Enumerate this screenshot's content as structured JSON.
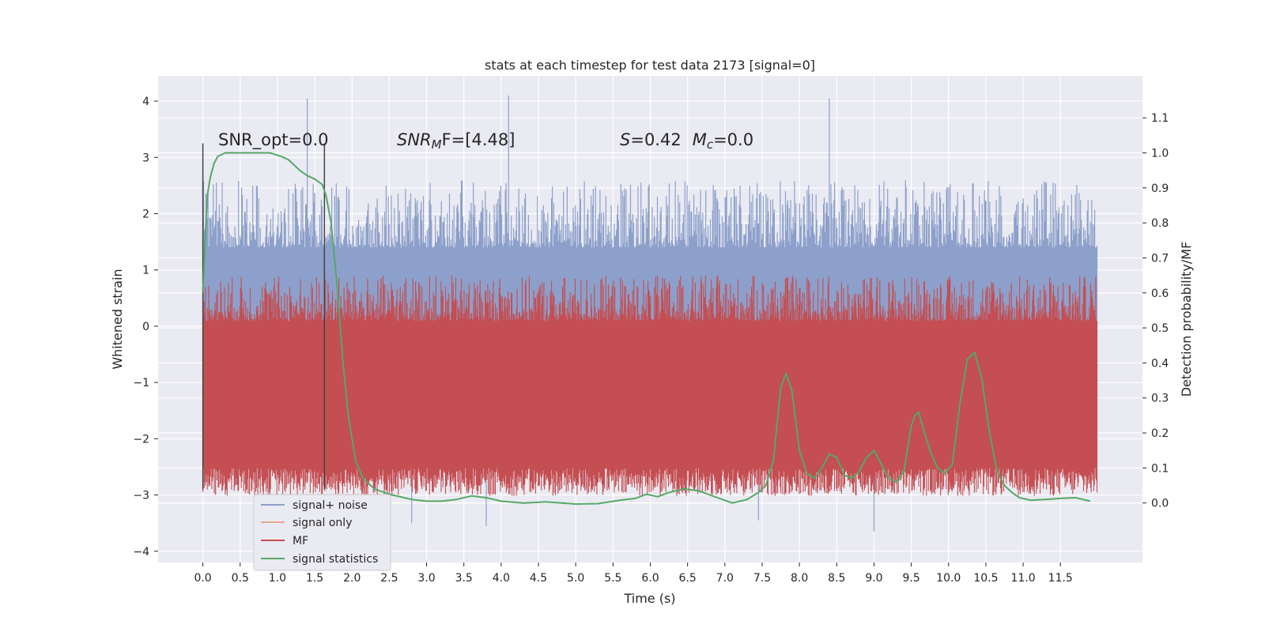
{
  "chart_data": {
    "type": "line",
    "title": "stats at each timestep for test data 2173 [signal=0]",
    "xlabel": "Time (s)",
    "ylabel": "Whitened strain",
    "y2label": "Detection probability/MF",
    "xlim": [
      -0.6,
      12.6
    ],
    "ylim": [
      -4.2,
      4.45
    ],
    "y2lim": [
      -0.17,
      1.22
    ],
    "xticks": [
      "0.0",
      "0.5",
      "1.0",
      "1.5",
      "2.0",
      "2.5",
      "3.0",
      "3.5",
      "4.0",
      "4.5",
      "5.0",
      "5.5",
      "6.0",
      "6.5",
      "7.0",
      "7.5",
      "8.0",
      "8.5",
      "9.0",
      "9.5",
      "10.0",
      "10.5",
      "11.0",
      "11.5"
    ],
    "yticks": [
      "4",
      "3",
      "2",
      "1",
      "0",
      "−1",
      "−2",
      "−3",
      "−4"
    ],
    "y2ticks": [
      "1.1",
      "1.0",
      "0.9",
      "0.8",
      "0.7",
      "0.6",
      "0.5",
      "0.4",
      "0.3",
      "0.2",
      "0.1",
      "0.0"
    ],
    "grid": true,
    "legend_position": "lower-left",
    "annotations": {
      "snr_opt": "SNR_opt=0.0",
      "snr_mf_sym": "SNR",
      "snr_mf_sub": "M",
      "snr_mf_tail": "F=[4.48]",
      "s_sym": "S",
      "s_val": "=0.42",
      "mc_sym": "M",
      "mc_sub": "c",
      "mc_val": "=0.0"
    },
    "vertical_lines_x": [
      0.0,
      1.63
    ],
    "series": [
      {
        "name": "signal+ noise",
        "color": "#8da0cb",
        "band": [
          -1.5,
          1.4
        ],
        "spikes": [
          [
            1.4,
            4.05
          ],
          [
            4.1,
            4.1
          ],
          [
            8.4,
            4.05
          ],
          [
            0.3,
            -3.0
          ],
          [
            3.8,
            -3.55
          ],
          [
            9.0,
            -3.65
          ],
          [
            7.45,
            -3.45
          ],
          [
            2.8,
            -3.5
          ]
        ]
      },
      {
        "name": "signal only",
        "color": "#e8a890",
        "values_note": "flat at 0"
      },
      {
        "name": "MF",
        "color": "#c44e52",
        "band": [
          0.02,
          0.62
        ],
        "axis": "y2"
      },
      {
        "name": "signal statistics",
        "color": "#55a868",
        "axis": "y2",
        "x": [
          0.0,
          0.03,
          0.06,
          0.1,
          0.15,
          0.2,
          0.3,
          0.5,
          0.7,
          0.9,
          1.05,
          1.15,
          1.3,
          1.4,
          1.5,
          1.6,
          1.65,
          1.72,
          1.8,
          1.88,
          1.95,
          2.05,
          2.15,
          2.3,
          2.5,
          2.8,
          3.0,
          3.2,
          3.4,
          3.6,
          3.8,
          4.0,
          4.3,
          4.6,
          5.0,
          5.3,
          5.6,
          5.8,
          5.95,
          6.1,
          6.25,
          6.45,
          6.65,
          6.9,
          7.1,
          7.3,
          7.45,
          7.55,
          7.65,
          7.75,
          7.82,
          7.9,
          8.0,
          8.1,
          8.2,
          8.3,
          8.4,
          8.5,
          8.6,
          8.7,
          8.8,
          8.9,
          9.0,
          9.1,
          9.2,
          9.3,
          9.4,
          9.5,
          9.55,
          9.6,
          9.65,
          9.75,
          9.85,
          9.95,
          10.05,
          10.15,
          10.25,
          10.35,
          10.45,
          10.55,
          10.65,
          10.75,
          10.85,
          10.95,
          11.1,
          11.3,
          11.5,
          11.7,
          11.9
        ],
        "values": [
          0.6,
          0.75,
          0.88,
          0.93,
          0.97,
          0.99,
          1.0,
          1.0,
          1.0,
          1.0,
          0.99,
          0.98,
          0.95,
          0.935,
          0.925,
          0.91,
          0.88,
          0.8,
          0.62,
          0.4,
          0.25,
          0.12,
          0.07,
          0.04,
          0.025,
          0.01,
          0.005,
          0.005,
          0.01,
          0.02,
          0.015,
          0.005,
          0.0,
          0.003,
          -0.003,
          -0.002,
          0.008,
          0.013,
          0.025,
          0.018,
          0.03,
          0.04,
          0.035,
          0.015,
          0.0,
          0.01,
          0.03,
          0.05,
          0.12,
          0.33,
          0.37,
          0.32,
          0.15,
          0.085,
          0.07,
          0.1,
          0.14,
          0.13,
          0.08,
          0.07,
          0.09,
          0.13,
          0.15,
          0.11,
          0.07,
          0.06,
          0.09,
          0.22,
          0.25,
          0.26,
          0.22,
          0.15,
          0.1,
          0.085,
          0.11,
          0.28,
          0.41,
          0.43,
          0.35,
          0.2,
          0.09,
          0.05,
          0.03,
          0.015,
          0.008,
          0.01,
          0.013,
          0.015,
          0.005
        ]
      }
    ]
  }
}
